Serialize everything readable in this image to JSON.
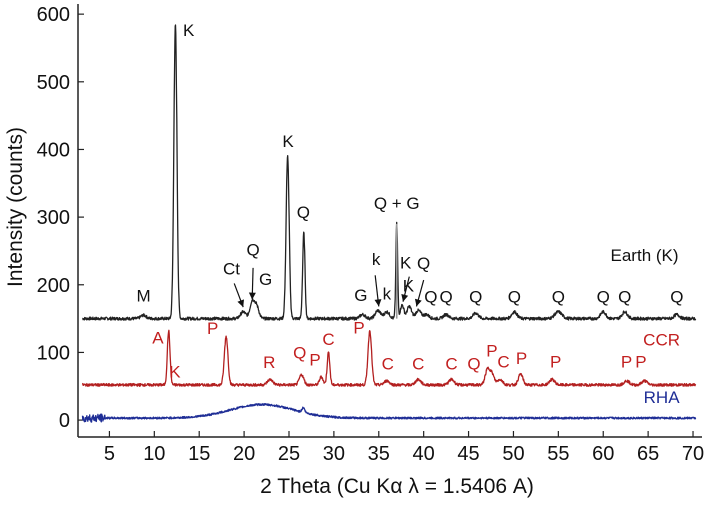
{
  "chart_data": {
    "type": "line",
    "xlabel": "2 Theta (Cu Kα λ = 1.5406 A)",
    "ylabel": "Intensity (counts)",
    "xlim": [
      1.5,
      71
    ],
    "ylim": [
      -25,
      615
    ],
    "x_ticks": [
      5,
      10,
      15,
      20,
      25,
      30,
      35,
      40,
      45,
      50,
      55,
      60,
      65,
      70
    ],
    "y_ticks": [
      0,
      100,
      200,
      300,
      400,
      500,
      600
    ],
    "colors": {
      "earth": "#222222",
      "ccr": "#b32020",
      "rha": "#1f2e96",
      "qg_peak": "#9a9a9a"
    },
    "series": [
      {
        "name": "Earth (K)",
        "baseline": 150,
        "peaks": [
          {
            "x": 8.8,
            "y": 5,
            "w": 0.3
          },
          {
            "x": 12.35,
            "y": 435,
            "w": 0.17
          },
          {
            "x": 19.9,
            "y": 10,
            "w": 0.3
          },
          {
            "x": 20.9,
            "y": 25,
            "w": 0.25
          },
          {
            "x": 21.4,
            "y": 18,
            "w": 0.25
          },
          {
            "x": 24.85,
            "y": 240,
            "w": 0.17
          },
          {
            "x": 26.65,
            "y": 127,
            "w": 0.13
          },
          {
            "x": 33.2,
            "y": 6,
            "w": 0.3
          },
          {
            "x": 34.9,
            "y": 12,
            "w": 0.3
          },
          {
            "x": 35.9,
            "y": 10,
            "w": 0.3
          },
          {
            "x": 37.0,
            "y": 140,
            "w": 0.1
          },
          {
            "x": 37.6,
            "y": 20,
            "w": 0.2
          },
          {
            "x": 38.4,
            "y": 18,
            "w": 0.25
          },
          {
            "x": 39.4,
            "y": 12,
            "w": 0.3
          },
          {
            "x": 40.3,
            "y": 6,
            "w": 0.3
          },
          {
            "x": 42.5,
            "y": 6,
            "w": 0.3
          },
          {
            "x": 45.8,
            "y": 8,
            "w": 0.3
          },
          {
            "x": 50.1,
            "y": 10,
            "w": 0.3
          },
          {
            "x": 55.0,
            "y": 10,
            "w": 0.4
          },
          {
            "x": 60.0,
            "y": 10,
            "w": 0.3
          },
          {
            "x": 62.4,
            "y": 10,
            "w": 0.3
          },
          {
            "x": 68.2,
            "y": 6,
            "w": 0.3
          }
        ]
      },
      {
        "name": "CCR",
        "baseline": 52,
        "peaks": [
          {
            "x": 11.6,
            "y": 80,
            "w": 0.15
          },
          {
            "x": 18.0,
            "y": 72,
            "w": 0.2
          },
          {
            "x": 22.9,
            "y": 8,
            "w": 0.3
          },
          {
            "x": 26.4,
            "y": 15,
            "w": 0.25
          },
          {
            "x": 28.6,
            "y": 12,
            "w": 0.2
          },
          {
            "x": 29.4,
            "y": 48,
            "w": 0.15
          },
          {
            "x": 34.0,
            "y": 80,
            "w": 0.2
          },
          {
            "x": 35.9,
            "y": 6,
            "w": 0.3
          },
          {
            "x": 39.4,
            "y": 8,
            "w": 0.3
          },
          {
            "x": 43.1,
            "y": 8,
            "w": 0.3
          },
          {
            "x": 47.1,
            "y": 22,
            "w": 0.25
          },
          {
            "x": 47.6,
            "y": 16,
            "w": 0.25
          },
          {
            "x": 48.5,
            "y": 8,
            "w": 0.3
          },
          {
            "x": 50.8,
            "y": 16,
            "w": 0.25
          },
          {
            "x": 54.3,
            "y": 8,
            "w": 0.3
          },
          {
            "x": 62.6,
            "y": 6,
            "w": 0.3
          },
          {
            "x": 64.6,
            "y": 6,
            "w": 0.3
          }
        ]
      },
      {
        "name": "RHA",
        "baseline": 3,
        "peaks": [
          {
            "x": 22.0,
            "y": 20,
            "w": 3.5
          },
          {
            "x": 26.6,
            "y": 7,
            "w": 0.15
          }
        ]
      }
    ],
    "series_labels": [
      {
        "text": "Earth (K)",
        "x": 64.6,
        "y": 235,
        "color": "#111111"
      },
      {
        "text": "CCR",
        "x": 66.5,
        "y": 110,
        "color": "#c21f1f"
      },
      {
        "text": "RHA",
        "x": 66.5,
        "y": 25,
        "color": "#1f2e96"
      }
    ],
    "annotations": [
      {
        "text": "K",
        "x": 13.2,
        "y": 568,
        "color": "#111111",
        "anchor": "start"
      },
      {
        "text": "M",
        "x": 8.8,
        "y": 175,
        "color": "#111111",
        "anchor": "middle"
      },
      {
        "text": "Ct",
        "x": 18.6,
        "y": 215,
        "color": "#111111",
        "anchor": "middle"
      },
      {
        "text": "Q",
        "x": 21.0,
        "y": 243,
        "color": "#111111",
        "anchor": "middle"
      },
      {
        "text": "G",
        "x": 22.4,
        "y": 200,
        "color": "#111111",
        "anchor": "middle"
      },
      {
        "text": "K",
        "x": 24.9,
        "y": 404,
        "color": "#111111",
        "anchor": "middle"
      },
      {
        "text": "Q",
        "x": 26.6,
        "y": 299,
        "color": "#111111",
        "anchor": "middle"
      },
      {
        "text": "k",
        "x": 34.7,
        "y": 229,
        "color": "#111111",
        "anchor": "middle"
      },
      {
        "text": "Q + G",
        "x": 37.0,
        "y": 312,
        "color": "#111111",
        "anchor": "middle"
      },
      {
        "text": "G",
        "x": 33.0,
        "y": 176,
        "color": "#111111",
        "anchor": "middle"
      },
      {
        "text": "k",
        "x": 35.9,
        "y": 178,
        "color": "#111111",
        "anchor": "middle"
      },
      {
        "text": "K",
        "x": 38.0,
        "y": 224,
        "color": "#111111",
        "anchor": "middle"
      },
      {
        "text": "Q",
        "x": 40.0,
        "y": 223,
        "color": "#111111",
        "anchor": "middle"
      },
      {
        "text": "K",
        "x": 38.3,
        "y": 190,
        "color": "#111111",
        "anchor": "middle"
      },
      {
        "text": "Q",
        "x": 40.8,
        "y": 174,
        "color": "#111111",
        "anchor": "middle"
      },
      {
        "text": "Q",
        "x": 42.5,
        "y": 174,
        "color": "#111111",
        "anchor": "middle"
      },
      {
        "text": "Q",
        "x": 45.8,
        "y": 174,
        "color": "#111111",
        "anchor": "middle"
      },
      {
        "text": "Q",
        "x": 50.1,
        "y": 174,
        "color": "#111111",
        "anchor": "middle"
      },
      {
        "text": "Q",
        "x": 55.0,
        "y": 174,
        "color": "#111111",
        "anchor": "middle"
      },
      {
        "text": "Q",
        "x": 60.0,
        "y": 174,
        "color": "#111111",
        "anchor": "middle"
      },
      {
        "text": "Q",
        "x": 62.4,
        "y": 174,
        "color": "#111111",
        "anchor": "middle"
      },
      {
        "text": "Q",
        "x": 68.2,
        "y": 174,
        "color": "#111111",
        "anchor": "middle"
      },
      {
        "text": "A",
        "x": 10.4,
        "y": 113,
        "color": "#c21f1f",
        "anchor": "middle"
      },
      {
        "text": "K",
        "x": 12.3,
        "y": 63,
        "color": "#c21f1f",
        "anchor": "middle"
      },
      {
        "text": "P",
        "x": 16.5,
        "y": 127,
        "color": "#c21f1f",
        "anchor": "middle"
      },
      {
        "text": "R",
        "x": 22.8,
        "y": 77,
        "color": "#c21f1f",
        "anchor": "middle"
      },
      {
        "text": "Q",
        "x": 26.2,
        "y": 91,
        "color": "#c21f1f",
        "anchor": "middle"
      },
      {
        "text": "P",
        "x": 27.9,
        "y": 81,
        "color": "#c21f1f",
        "anchor": "middle"
      },
      {
        "text": "C",
        "x": 29.4,
        "y": 111,
        "color": "#c21f1f",
        "anchor": "middle"
      },
      {
        "text": "P",
        "x": 32.8,
        "y": 128,
        "color": "#c21f1f",
        "anchor": "middle"
      },
      {
        "text": "C",
        "x": 36.0,
        "y": 75,
        "color": "#c21f1f",
        "anchor": "middle"
      },
      {
        "text": "C",
        "x": 39.4,
        "y": 75,
        "color": "#c21f1f",
        "anchor": "middle"
      },
      {
        "text": "C",
        "x": 43.1,
        "y": 75,
        "color": "#c21f1f",
        "anchor": "middle"
      },
      {
        "text": "Q",
        "x": 45.6,
        "y": 75,
        "color": "#c21f1f",
        "anchor": "middle"
      },
      {
        "text": "P",
        "x": 47.6,
        "y": 94,
        "color": "#c21f1f",
        "anchor": "middle"
      },
      {
        "text": "C",
        "x": 48.9,
        "y": 78,
        "color": "#c21f1f",
        "anchor": "middle"
      },
      {
        "text": "P",
        "x": 50.9,
        "y": 83,
        "color": "#c21f1f",
        "anchor": "middle"
      },
      {
        "text": "P",
        "x": 54.7,
        "y": 78,
        "color": "#c21f1f",
        "anchor": "middle"
      },
      {
        "text": "P",
        "x": 62.6,
        "y": 78,
        "color": "#c21f1f",
        "anchor": "middle"
      },
      {
        "text": "P",
        "x": 64.2,
        "y": 78,
        "color": "#c21f1f",
        "anchor": "middle"
      }
    ],
    "arrows": [
      {
        "from": [
          18.9,
          202
        ],
        "to": [
          19.9,
          167
        ]
      },
      {
        "from": [
          21.0,
          225
        ],
        "to": [
          20.9,
          178
        ]
      },
      {
        "from": [
          34.6,
          214
        ],
        "to": [
          35.0,
          168
        ]
      },
      {
        "from": [
          38.4,
          212
        ],
        "to": [
          37.7,
          175
        ]
      },
      {
        "from": [
          40.0,
          207
        ],
        "to": [
          39.2,
          168
        ]
      }
    ],
    "grid": false,
    "legend": "none"
  }
}
